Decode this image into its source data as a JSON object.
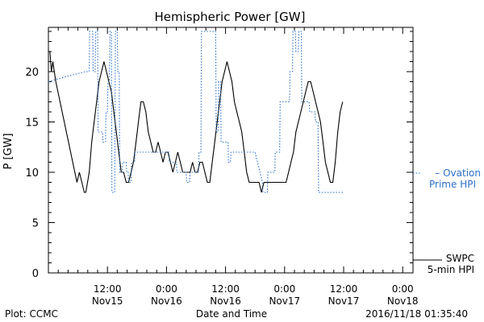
{
  "chart_data": {
    "type": "line",
    "title": "Hemispheric Power [GW]",
    "ylabel": "P [GW]",
    "xlabel": "Date and Time",
    "ylim": [
      0,
      24
    ],
    "xlim_hours": [
      0,
      72
    ],
    "grid": false,
    "y_ticks": [
      "0",
      "5",
      "10",
      "15",
      "20"
    ],
    "x_ticks": [
      {
        "time": "12:00",
        "date": "Nov15"
      },
      {
        "time": "0:00",
        "date": "Nov16"
      },
      {
        "time": "12:00",
        "date": "Nov16"
      },
      {
        "time": "0:00",
        "date": "Nov17"
      },
      {
        "time": "12:00",
        "date": "Nov17"
      },
      {
        "time": "0:00",
        "date": "Nov18"
      }
    ],
    "series": [
      {
        "name": "SWPC 5-min HPI",
        "color": "#000000",
        "style": "solid",
        "legend_lines": [
          "SWPC",
          "5-min HPI"
        ],
        "points": [
          [
            0,
            22
          ],
          [
            0.3,
            22
          ],
          [
            0.6,
            20
          ],
          [
            0.9,
            21
          ],
          [
            1.2,
            20
          ],
          [
            1.5,
            19
          ],
          [
            5.8,
            9
          ],
          [
            6.3,
            10
          ],
          [
            6.8,
            9
          ],
          [
            7.3,
            8
          ],
          [
            7.6,
            8
          ],
          [
            8.3,
            10
          ],
          [
            8.8,
            13
          ],
          [
            9.3,
            15
          ],
          [
            9.8,
            17
          ],
          [
            10.3,
            19
          ],
          [
            10.8,
            20
          ],
          [
            11.3,
            21
          ],
          [
            11.8,
            20
          ],
          [
            12.3,
            19
          ],
          [
            12.8,
            18
          ],
          [
            13.3,
            16
          ],
          [
            13.8,
            14
          ],
          [
            14.3,
            12
          ],
          [
            14.8,
            10
          ],
          [
            15.3,
            10
          ],
          [
            15.8,
            9
          ],
          [
            16.3,
            9
          ],
          [
            16.8,
            10
          ],
          [
            17.3,
            11
          ],
          [
            17.8,
            13
          ],
          [
            18.3,
            15
          ],
          [
            18.8,
            17
          ],
          [
            19.3,
            17
          ],
          [
            19.8,
            16
          ],
          [
            20.3,
            14
          ],
          [
            20.8,
            13
          ],
          [
            21.3,
            12
          ],
          [
            21.8,
            12
          ],
          [
            22.3,
            13
          ],
          [
            22.8,
            12
          ],
          [
            23.3,
            11
          ],
          [
            23.8,
            12
          ],
          [
            24.3,
            12
          ],
          [
            24.8,
            11
          ],
          [
            25.3,
            10
          ],
          [
            25.8,
            11
          ],
          [
            26.3,
            12
          ],
          [
            26.8,
            11
          ],
          [
            27.3,
            10
          ],
          [
            27.8,
            10
          ],
          [
            28.3,
            10
          ],
          [
            28.8,
            10
          ],
          [
            29.3,
            11
          ],
          [
            29.8,
            10
          ],
          [
            30.3,
            10
          ],
          [
            30.8,
            11
          ],
          [
            31.3,
            11
          ],
          [
            31.8,
            10
          ],
          [
            32.3,
            9
          ],
          [
            32.8,
            9
          ],
          [
            33.3,
            11
          ],
          [
            33.8,
            13
          ],
          [
            34.3,
            15
          ],
          [
            34.8,
            17
          ],
          [
            35.3,
            19
          ],
          [
            35.8,
            20
          ],
          [
            36.3,
            21
          ],
          [
            36.8,
            20
          ],
          [
            37.3,
            19
          ],
          [
            37.8,
            17
          ],
          [
            38.3,
            16
          ],
          [
            38.8,
            15
          ],
          [
            39.3,
            14
          ],
          [
            39.8,
            12
          ],
          [
            40.3,
            10
          ],
          [
            40.8,
            9
          ],
          [
            41.3,
            9
          ],
          [
            41.8,
            9
          ],
          [
            42.3,
            9
          ],
          [
            42.8,
            9
          ],
          [
            43.3,
            8
          ],
          [
            43.8,
            9
          ],
          [
            44.3,
            9
          ],
          [
            44.8,
            9
          ],
          [
            45.3,
            9
          ],
          [
            45.8,
            9
          ],
          [
            46.3,
            9
          ],
          [
            46.8,
            9
          ],
          [
            47.3,
            9
          ],
          [
            47.8,
            9
          ],
          [
            48.3,
            9
          ],
          [
            48.8,
            10
          ],
          [
            49.3,
            11
          ],
          [
            49.8,
            12
          ],
          [
            50.3,
            14
          ],
          [
            50.8,
            15
          ],
          [
            51.3,
            16
          ],
          [
            51.8,
            17
          ],
          [
            52.3,
            18
          ],
          [
            52.8,
            19
          ],
          [
            53.3,
            19
          ],
          [
            53.8,
            18
          ],
          [
            54.3,
            17
          ],
          [
            54.8,
            16
          ],
          [
            55.3,
            15
          ],
          [
            55.8,
            13
          ],
          [
            56.3,
            11
          ],
          [
            56.8,
            10
          ],
          [
            57.3,
            9
          ],
          [
            57.8,
            9
          ],
          [
            58.3,
            11
          ],
          [
            58.8,
            14
          ],
          [
            59.3,
            16
          ],
          [
            59.8,
            17
          ]
        ]
      },
      {
        "name": "Ovation Prime HPI",
        "color": "#2a6fc9",
        "style": "dotted",
        "legend_lines": [
          "– Ovation",
          "Prime HPI"
        ],
        "points": [
          [
            0,
            19
          ],
          [
            3.5,
            19.5
          ],
          [
            7.5,
            20
          ],
          [
            8.3,
            20
          ],
          [
            8.4,
            24
          ],
          [
            9.0,
            24
          ],
          [
            9.1,
            20
          ],
          [
            9.5,
            20
          ],
          [
            9.6,
            24
          ],
          [
            10.0,
            24
          ],
          [
            10.1,
            14
          ],
          [
            11.0,
            14
          ],
          [
            11.1,
            13
          ],
          [
            11.6,
            13
          ],
          [
            11.7,
            16
          ],
          [
            12.0,
            16
          ],
          [
            12.1,
            19
          ],
          [
            12.4,
            19
          ],
          [
            12.5,
            24
          ],
          [
            12.8,
            24
          ],
          [
            12.9,
            8
          ],
          [
            13.5,
            8
          ],
          [
            13.6,
            24
          ],
          [
            14.0,
            24
          ],
          [
            14.1,
            20
          ],
          [
            14.4,
            20
          ],
          [
            14.5,
            10
          ],
          [
            15.0,
            10
          ],
          [
            15.1,
            11
          ],
          [
            15.8,
            11
          ],
          [
            15.9,
            10
          ],
          [
            16.2,
            10
          ],
          [
            16.3,
            9
          ],
          [
            16.8,
            9
          ],
          [
            16.9,
            11
          ],
          [
            17.5,
            11
          ],
          [
            17.6,
            12
          ],
          [
            24.5,
            12
          ],
          [
            24.6,
            11
          ],
          [
            26.0,
            11
          ],
          [
            26.1,
            10
          ],
          [
            28.0,
            10
          ],
          [
            28.1,
            9
          ],
          [
            28.7,
            9
          ],
          [
            28.8,
            10
          ],
          [
            30.5,
            10
          ],
          [
            30.6,
            12
          ],
          [
            31.0,
            12
          ],
          [
            31.1,
            24
          ],
          [
            34.0,
            24
          ],
          [
            34.1,
            14
          ],
          [
            34.5,
            14
          ],
          [
            34.6,
            19
          ],
          [
            35.0,
            19
          ],
          [
            35.1,
            13
          ],
          [
            36.5,
            13
          ],
          [
            36.6,
            11
          ],
          [
            37.0,
            11
          ],
          [
            37.1,
            12
          ],
          [
            42.0,
            12
          ],
          [
            43.5,
            9
          ],
          [
            43.6,
            8
          ],
          [
            44.5,
            8
          ],
          [
            44.6,
            10
          ],
          [
            45.5,
            10
          ],
          [
            45.6,
            10
          ],
          [
            46.0,
            10
          ],
          [
            46.1,
            12
          ],
          [
            47.0,
            12
          ],
          [
            47.1,
            17
          ],
          [
            49.0,
            17
          ],
          [
            49.1,
            20
          ],
          [
            49.6,
            20
          ],
          [
            49.7,
            24
          ],
          [
            50.2,
            24
          ],
          [
            50.3,
            22
          ],
          [
            50.8,
            22
          ],
          [
            50.9,
            24
          ],
          [
            51.4,
            24
          ],
          [
            51.5,
            17
          ],
          [
            53.0,
            17
          ],
          [
            53.1,
            16
          ],
          [
            54.2,
            16
          ],
          [
            54.3,
            15
          ],
          [
            54.8,
            15
          ],
          [
            54.9,
            8
          ],
          [
            60,
            8
          ]
        ]
      }
    ]
  },
  "footer": {
    "plot_source": "Plot: CCMC",
    "timestamp": "2016/11/18 01:35:40"
  }
}
